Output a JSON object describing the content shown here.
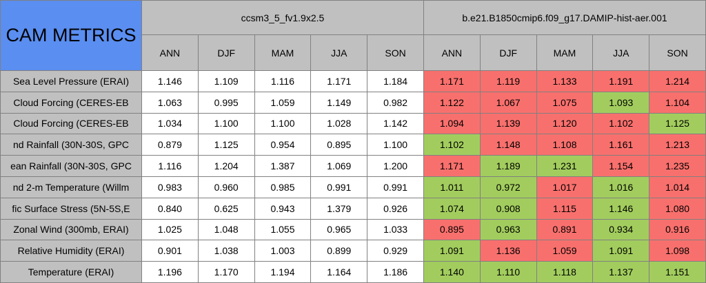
{
  "corner_title": "CAM METRICS",
  "groups": [
    {
      "name": "ccsm3_5_fv1.9x2.5",
      "seasons": [
        "ANN",
        "DJF",
        "MAM",
        "JJA",
        "SON"
      ]
    },
    {
      "name": "b.e21.B1850cmip6.f09_g17.DAMIP-hist-aer.001",
      "seasons": [
        "ANN",
        "DJF",
        "MAM",
        "JJA",
        "SON"
      ]
    }
  ],
  "rows": [
    {
      "label": "Sea Level Pressure (ERAI)",
      "values": [
        "1.146",
        "1.109",
        "1.116",
        "1.171",
        "1.184",
        "1.171",
        "1.119",
        "1.133",
        "1.191",
        "1.214"
      ],
      "colors": [
        "#ffffff",
        "#ffffff",
        "#ffffff",
        "#ffffff",
        "#ffffff",
        "#f8706d",
        "#f8706d",
        "#f8706d",
        "#f8706d",
        "#f8706d"
      ]
    },
    {
      "label": "Cloud Forcing (CERES-EB",
      "values": [
        "1.063",
        "0.995",
        "1.059",
        "1.149",
        "0.982",
        "1.122",
        "1.067",
        "1.075",
        "1.093",
        "1.104"
      ],
      "colors": [
        "#ffffff",
        "#ffffff",
        "#ffffff",
        "#ffffff",
        "#ffffff",
        "#f8706d",
        "#f8706d",
        "#f8706d",
        "#a2cd5e",
        "#f8706d"
      ]
    },
    {
      "label": "Cloud Forcing (CERES-EB",
      "values": [
        "1.034",
        "1.100",
        "1.100",
        "1.028",
        "1.142",
        "1.094",
        "1.139",
        "1.120",
        "1.102",
        "1.125"
      ],
      "colors": [
        "#ffffff",
        "#ffffff",
        "#ffffff",
        "#ffffff",
        "#ffffff",
        "#f8706d",
        "#f8706d",
        "#f8706d",
        "#f8706d",
        "#a2cd5e"
      ]
    },
    {
      "label": "nd Rainfall (30N-30S, GPC",
      "values": [
        "0.879",
        "1.125",
        "0.954",
        "0.895",
        "1.100",
        "1.102",
        "1.148",
        "1.108",
        "1.161",
        "1.213"
      ],
      "colors": [
        "#ffffff",
        "#ffffff",
        "#ffffff",
        "#ffffff",
        "#ffffff",
        "#a2cd5e",
        "#f8706d",
        "#f8706d",
        "#f8706d",
        "#f8706d"
      ]
    },
    {
      "label": "ean Rainfall (30N-30S, GPC",
      "values": [
        "1.116",
        "1.204",
        "1.387",
        "1.069",
        "1.200",
        "1.171",
        "1.189",
        "1.231",
        "1.154",
        "1.235"
      ],
      "colors": [
        "#ffffff",
        "#ffffff",
        "#ffffff",
        "#ffffff",
        "#ffffff",
        "#f8706d",
        "#a2cd5e",
        "#a2cd5e",
        "#f8706d",
        "#f8706d"
      ]
    },
    {
      "label": "nd 2-m Temperature (Willm",
      "values": [
        "0.983",
        "0.960",
        "0.985",
        "0.991",
        "0.991",
        "1.011",
        "0.972",
        "1.017",
        "1.016",
        "1.014"
      ],
      "colors": [
        "#ffffff",
        "#ffffff",
        "#ffffff",
        "#ffffff",
        "#ffffff",
        "#a2cd5e",
        "#a2cd5e",
        "#f8706d",
        "#a2cd5e",
        "#f8706d"
      ]
    },
    {
      "label": "fic Surface Stress (5N-5S,E",
      "values": [
        "0.840",
        "0.625",
        "0.943",
        "1.379",
        "0.926",
        "1.074",
        "0.908",
        "1.115",
        "1.146",
        "1.080"
      ],
      "colors": [
        "#ffffff",
        "#ffffff",
        "#ffffff",
        "#ffffff",
        "#ffffff",
        "#a2cd5e",
        "#a2cd5e",
        "#f8706d",
        "#a2cd5e",
        "#f8706d"
      ]
    },
    {
      "label": "Zonal Wind (300mb, ERAI)",
      "values": [
        "1.025",
        "1.048",
        "1.055",
        "0.965",
        "1.033",
        "0.895",
        "0.963",
        "0.891",
        "0.934",
        "0.916"
      ],
      "colors": [
        "#ffffff",
        "#ffffff",
        "#ffffff",
        "#ffffff",
        "#ffffff",
        "#f8706d",
        "#a2cd5e",
        "#f8706d",
        "#a2cd5e",
        "#f8706d"
      ]
    },
    {
      "label": "Relative Humidity (ERAI)",
      "values": [
        "0.901",
        "1.038",
        "1.003",
        "0.899",
        "0.929",
        "1.091",
        "1.136",
        "1.059",
        "1.091",
        "1.098"
      ],
      "colors": [
        "#ffffff",
        "#ffffff",
        "#ffffff",
        "#ffffff",
        "#ffffff",
        "#a2cd5e",
        "#f8706d",
        "#f8706d",
        "#a2cd5e",
        "#f8706d"
      ]
    },
    {
      "label": "Temperature (ERAI)",
      "values": [
        "1.196",
        "1.170",
        "1.194",
        "1.164",
        "1.186",
        "1.140",
        "1.110",
        "1.118",
        "1.137",
        "1.151"
      ],
      "colors": [
        "#ffffff",
        "#ffffff",
        "#ffffff",
        "#ffffff",
        "#ffffff",
        "#a2cd5e",
        "#a2cd5e",
        "#a2cd5e",
        "#a2cd5e",
        "#a2cd5e"
      ]
    }
  ]
}
